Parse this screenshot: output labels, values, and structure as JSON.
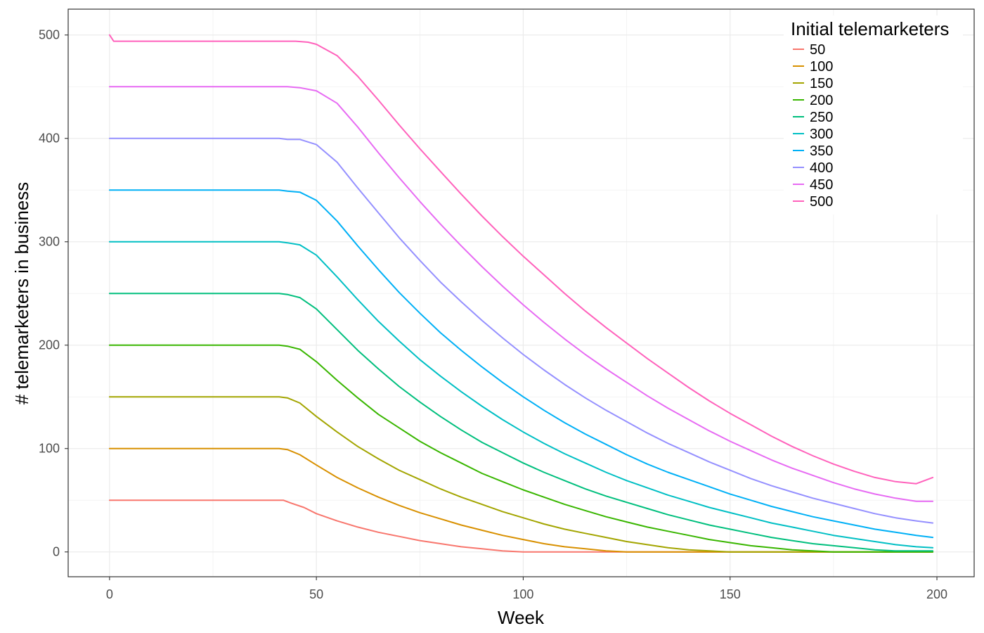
{
  "chart_data": {
    "type": "line",
    "xlabel": "Week",
    "ylabel": "# telemarketers in business",
    "xlim": [
      -10,
      209
    ],
    "ylim": [
      -24,
      525
    ],
    "x_ticks": [
      "0",
      "50",
      "100",
      "150",
      "200"
    ],
    "y_ticks": [
      "0",
      "100",
      "200",
      "300",
      "400",
      "500"
    ],
    "grid": true,
    "legend": {
      "title": "Initial telemarketers",
      "position": "top-right"
    },
    "series": [
      {
        "name": "50",
        "color": "#F8766D",
        "points": [
          [
            0,
            50
          ],
          [
            42,
            50
          ],
          [
            44,
            47
          ],
          [
            47,
            43
          ],
          [
            50,
            37
          ],
          [
            55,
            30
          ],
          [
            60,
            24
          ],
          [
            65,
            19
          ],
          [
            70,
            15
          ],
          [
            75,
            11
          ],
          [
            80,
            8
          ],
          [
            85,
            5
          ],
          [
            90,
            3
          ],
          [
            95,
            1
          ],
          [
            100,
            0
          ],
          [
            199,
            0
          ]
        ]
      },
      {
        "name": "100",
        "color": "#D89000",
        "points": [
          [
            0,
            100
          ],
          [
            41,
            100
          ],
          [
            43,
            99
          ],
          [
            46,
            94
          ],
          [
            50,
            84
          ],
          [
            55,
            72
          ],
          [
            60,
            62
          ],
          [
            65,
            53
          ],
          [
            70,
            45
          ],
          [
            75,
            38
          ],
          [
            80,
            32
          ],
          [
            85,
            26
          ],
          [
            90,
            21
          ],
          [
            95,
            16
          ],
          [
            100,
            12
          ],
          [
            105,
            8
          ],
          [
            110,
            5
          ],
          [
            115,
            3
          ],
          [
            120,
            1
          ],
          [
            125,
            0
          ],
          [
            199,
            0
          ]
        ]
      },
      {
        "name": "150",
        "color": "#A3A500",
        "points": [
          [
            0,
            150
          ],
          [
            41,
            150
          ],
          [
            43,
            149
          ],
          [
            46,
            144
          ],
          [
            50,
            131
          ],
          [
            55,
            116
          ],
          [
            60,
            102
          ],
          [
            65,
            90
          ],
          [
            70,
            79
          ],
          [
            75,
            70
          ],
          [
            80,
            61
          ],
          [
            85,
            53
          ],
          [
            90,
            46
          ],
          [
            95,
            39
          ],
          [
            100,
            33
          ],
          [
            105,
            27
          ],
          [
            110,
            22
          ],
          [
            115,
            18
          ],
          [
            120,
            14
          ],
          [
            125,
            10
          ],
          [
            130,
            7
          ],
          [
            135,
            4
          ],
          [
            140,
            2
          ],
          [
            145,
            1
          ],
          [
            150,
            0
          ],
          [
            199,
            0
          ]
        ]
      },
      {
        "name": "200",
        "color": "#39B600",
        "points": [
          [
            0,
            200
          ],
          [
            41,
            200
          ],
          [
            43,
            199
          ],
          [
            46,
            196
          ],
          [
            50,
            184
          ],
          [
            55,
            166
          ],
          [
            60,
            149
          ],
          [
            65,
            133
          ],
          [
            70,
            120
          ],
          [
            75,
            107
          ],
          [
            80,
            96
          ],
          [
            85,
            86
          ],
          [
            90,
            76
          ],
          [
            95,
            68
          ],
          [
            100,
            60
          ],
          [
            105,
            53
          ],
          [
            110,
            46
          ],
          [
            115,
            40
          ],
          [
            120,
            34
          ],
          [
            125,
            29
          ],
          [
            130,
            24
          ],
          [
            135,
            20
          ],
          [
            140,
            16
          ],
          [
            145,
            12
          ],
          [
            150,
            9
          ],
          [
            155,
            6
          ],
          [
            160,
            4
          ],
          [
            165,
            2
          ],
          [
            170,
            1
          ],
          [
            175,
            0
          ],
          [
            199,
            0
          ]
        ]
      },
      {
        "name": "250",
        "color": "#00BF7D",
        "points": [
          [
            0,
            250
          ],
          [
            41,
            250
          ],
          [
            43,
            249
          ],
          [
            46,
            246
          ],
          [
            50,
            235
          ],
          [
            55,
            215
          ],
          [
            60,
            195
          ],
          [
            65,
            177
          ],
          [
            70,
            160
          ],
          [
            75,
            145
          ],
          [
            80,
            131
          ],
          [
            85,
            118
          ],
          [
            90,
            106
          ],
          [
            95,
            96
          ],
          [
            100,
            86
          ],
          [
            105,
            77
          ],
          [
            110,
            69
          ],
          [
            115,
            61
          ],
          [
            120,
            54
          ],
          [
            125,
            48
          ],
          [
            130,
            42
          ],
          [
            135,
            36
          ],
          [
            140,
            31
          ],
          [
            145,
            26
          ],
          [
            150,
            22
          ],
          [
            155,
            18
          ],
          [
            160,
            14
          ],
          [
            165,
            11
          ],
          [
            170,
            8
          ],
          [
            175,
            6
          ],
          [
            180,
            4
          ],
          [
            185,
            2
          ],
          [
            190,
            1
          ],
          [
            195,
            1
          ],
          [
            199,
            1
          ]
        ]
      },
      {
        "name": "300",
        "color": "#00BFC4",
        "points": [
          [
            0,
            300
          ],
          [
            41,
            300
          ],
          [
            43,
            299
          ],
          [
            46,
            297
          ],
          [
            50,
            287
          ],
          [
            55,
            266
          ],
          [
            60,
            244
          ],
          [
            65,
            223
          ],
          [
            70,
            204
          ],
          [
            75,
            186
          ],
          [
            80,
            170
          ],
          [
            85,
            155
          ],
          [
            90,
            141
          ],
          [
            95,
            128
          ],
          [
            100,
            116
          ],
          [
            105,
            105
          ],
          [
            110,
            95
          ],
          [
            115,
            86
          ],
          [
            120,
            77
          ],
          [
            125,
            69
          ],
          [
            130,
            62
          ],
          [
            135,
            55
          ],
          [
            140,
            49
          ],
          [
            145,
            43
          ],
          [
            150,
            38
          ],
          [
            155,
            33
          ],
          [
            160,
            28
          ],
          [
            165,
            24
          ],
          [
            170,
            20
          ],
          [
            175,
            16
          ],
          [
            180,
            13
          ],
          [
            185,
            10
          ],
          [
            190,
            7
          ],
          [
            195,
            5
          ],
          [
            199,
            4
          ]
        ]
      },
      {
        "name": "350",
        "color": "#00B0F6",
        "points": [
          [
            0,
            350
          ],
          [
            41,
            350
          ],
          [
            43,
            349
          ],
          [
            46,
            348
          ],
          [
            50,
            340
          ],
          [
            55,
            320
          ],
          [
            60,
            296
          ],
          [
            65,
            273
          ],
          [
            70,
            251
          ],
          [
            75,
            231
          ],
          [
            80,
            212
          ],
          [
            85,
            195
          ],
          [
            90,
            179
          ],
          [
            95,
            164
          ],
          [
            100,
            150
          ],
          [
            105,
            137
          ],
          [
            110,
            125
          ],
          [
            115,
            114
          ],
          [
            120,
            104
          ],
          [
            125,
            94
          ],
          [
            130,
            85
          ],
          [
            135,
            77
          ],
          [
            140,
            70
          ],
          [
            145,
            63
          ],
          [
            150,
            56
          ],
          [
            155,
            50
          ],
          [
            160,
            44
          ],
          [
            165,
            39
          ],
          [
            170,
            34
          ],
          [
            175,
            30
          ],
          [
            180,
            26
          ],
          [
            185,
            22
          ],
          [
            190,
            19
          ],
          [
            195,
            16
          ],
          [
            199,
            14
          ]
        ]
      },
      {
        "name": "400",
        "color": "#9590FF",
        "points": [
          [
            0,
            400
          ],
          [
            41,
            400
          ],
          [
            43,
            399
          ],
          [
            46,
            399
          ],
          [
            50,
            394
          ],
          [
            55,
            377
          ],
          [
            60,
            352
          ],
          [
            65,
            328
          ],
          [
            70,
            304
          ],
          [
            75,
            282
          ],
          [
            80,
            261
          ],
          [
            85,
            242
          ],
          [
            90,
            224
          ],
          [
            95,
            207
          ],
          [
            100,
            191
          ],
          [
            105,
            176
          ],
          [
            110,
            162
          ],
          [
            115,
            149
          ],
          [
            120,
            137
          ],
          [
            125,
            126
          ],
          [
            130,
            115
          ],
          [
            135,
            105
          ],
          [
            140,
            96
          ],
          [
            145,
            87
          ],
          [
            150,
            79
          ],
          [
            155,
            71
          ],
          [
            160,
            64
          ],
          [
            165,
            58
          ],
          [
            170,
            52
          ],
          [
            175,
            47
          ],
          [
            180,
            42
          ],
          [
            185,
            37
          ],
          [
            190,
            33
          ],
          [
            195,
            30
          ],
          [
            199,
            28
          ]
        ]
      },
      {
        "name": "450",
        "color": "#E76BF3",
        "points": [
          [
            0,
            450
          ],
          [
            41,
            450
          ],
          [
            43,
            450
          ],
          [
            46,
            449
          ],
          [
            50,
            446
          ],
          [
            55,
            434
          ],
          [
            60,
            411
          ],
          [
            65,
            386
          ],
          [
            70,
            362
          ],
          [
            75,
            339
          ],
          [
            80,
            317
          ],
          [
            85,
            296
          ],
          [
            90,
            276
          ],
          [
            95,
            257
          ],
          [
            100,
            239
          ],
          [
            105,
            222
          ],
          [
            110,
            206
          ],
          [
            115,
            191
          ],
          [
            120,
            177
          ],
          [
            125,
            164
          ],
          [
            130,
            151
          ],
          [
            135,
            139
          ],
          [
            140,
            128
          ],
          [
            145,
            117
          ],
          [
            150,
            107
          ],
          [
            155,
            98
          ],
          [
            160,
            89
          ],
          [
            165,
            81
          ],
          [
            170,
            74
          ],
          [
            175,
            67
          ],
          [
            180,
            61
          ],
          [
            185,
            56
          ],
          [
            190,
            52
          ],
          [
            195,
            49
          ],
          [
            199,
            49
          ]
        ]
      },
      {
        "name": "500",
        "color": "#FF62BC",
        "points": [
          [
            0,
            500
          ],
          [
            1,
            494
          ],
          [
            41,
            494
          ],
          [
            45,
            494
          ],
          [
            48,
            493
          ],
          [
            50,
            491
          ],
          [
            55,
            480
          ],
          [
            60,
            460
          ],
          [
            65,
            437
          ],
          [
            70,
            413
          ],
          [
            75,
            390
          ],
          [
            80,
            368
          ],
          [
            85,
            346
          ],
          [
            90,
            325
          ],
          [
            95,
            305
          ],
          [
            100,
            286
          ],
          [
            105,
            268
          ],
          [
            110,
            250
          ],
          [
            115,
            233
          ],
          [
            120,
            217
          ],
          [
            125,
            202
          ],
          [
            130,
            187
          ],
          [
            135,
            173
          ],
          [
            140,
            159
          ],
          [
            145,
            146
          ],
          [
            150,
            134
          ],
          [
            155,
            123
          ],
          [
            160,
            112
          ],
          [
            165,
            102
          ],
          [
            170,
            93
          ],
          [
            175,
            85
          ],
          [
            180,
            78
          ],
          [
            185,
            72
          ],
          [
            190,
            68
          ],
          [
            195,
            66
          ],
          [
            199,
            72
          ]
        ]
      }
    ]
  }
}
